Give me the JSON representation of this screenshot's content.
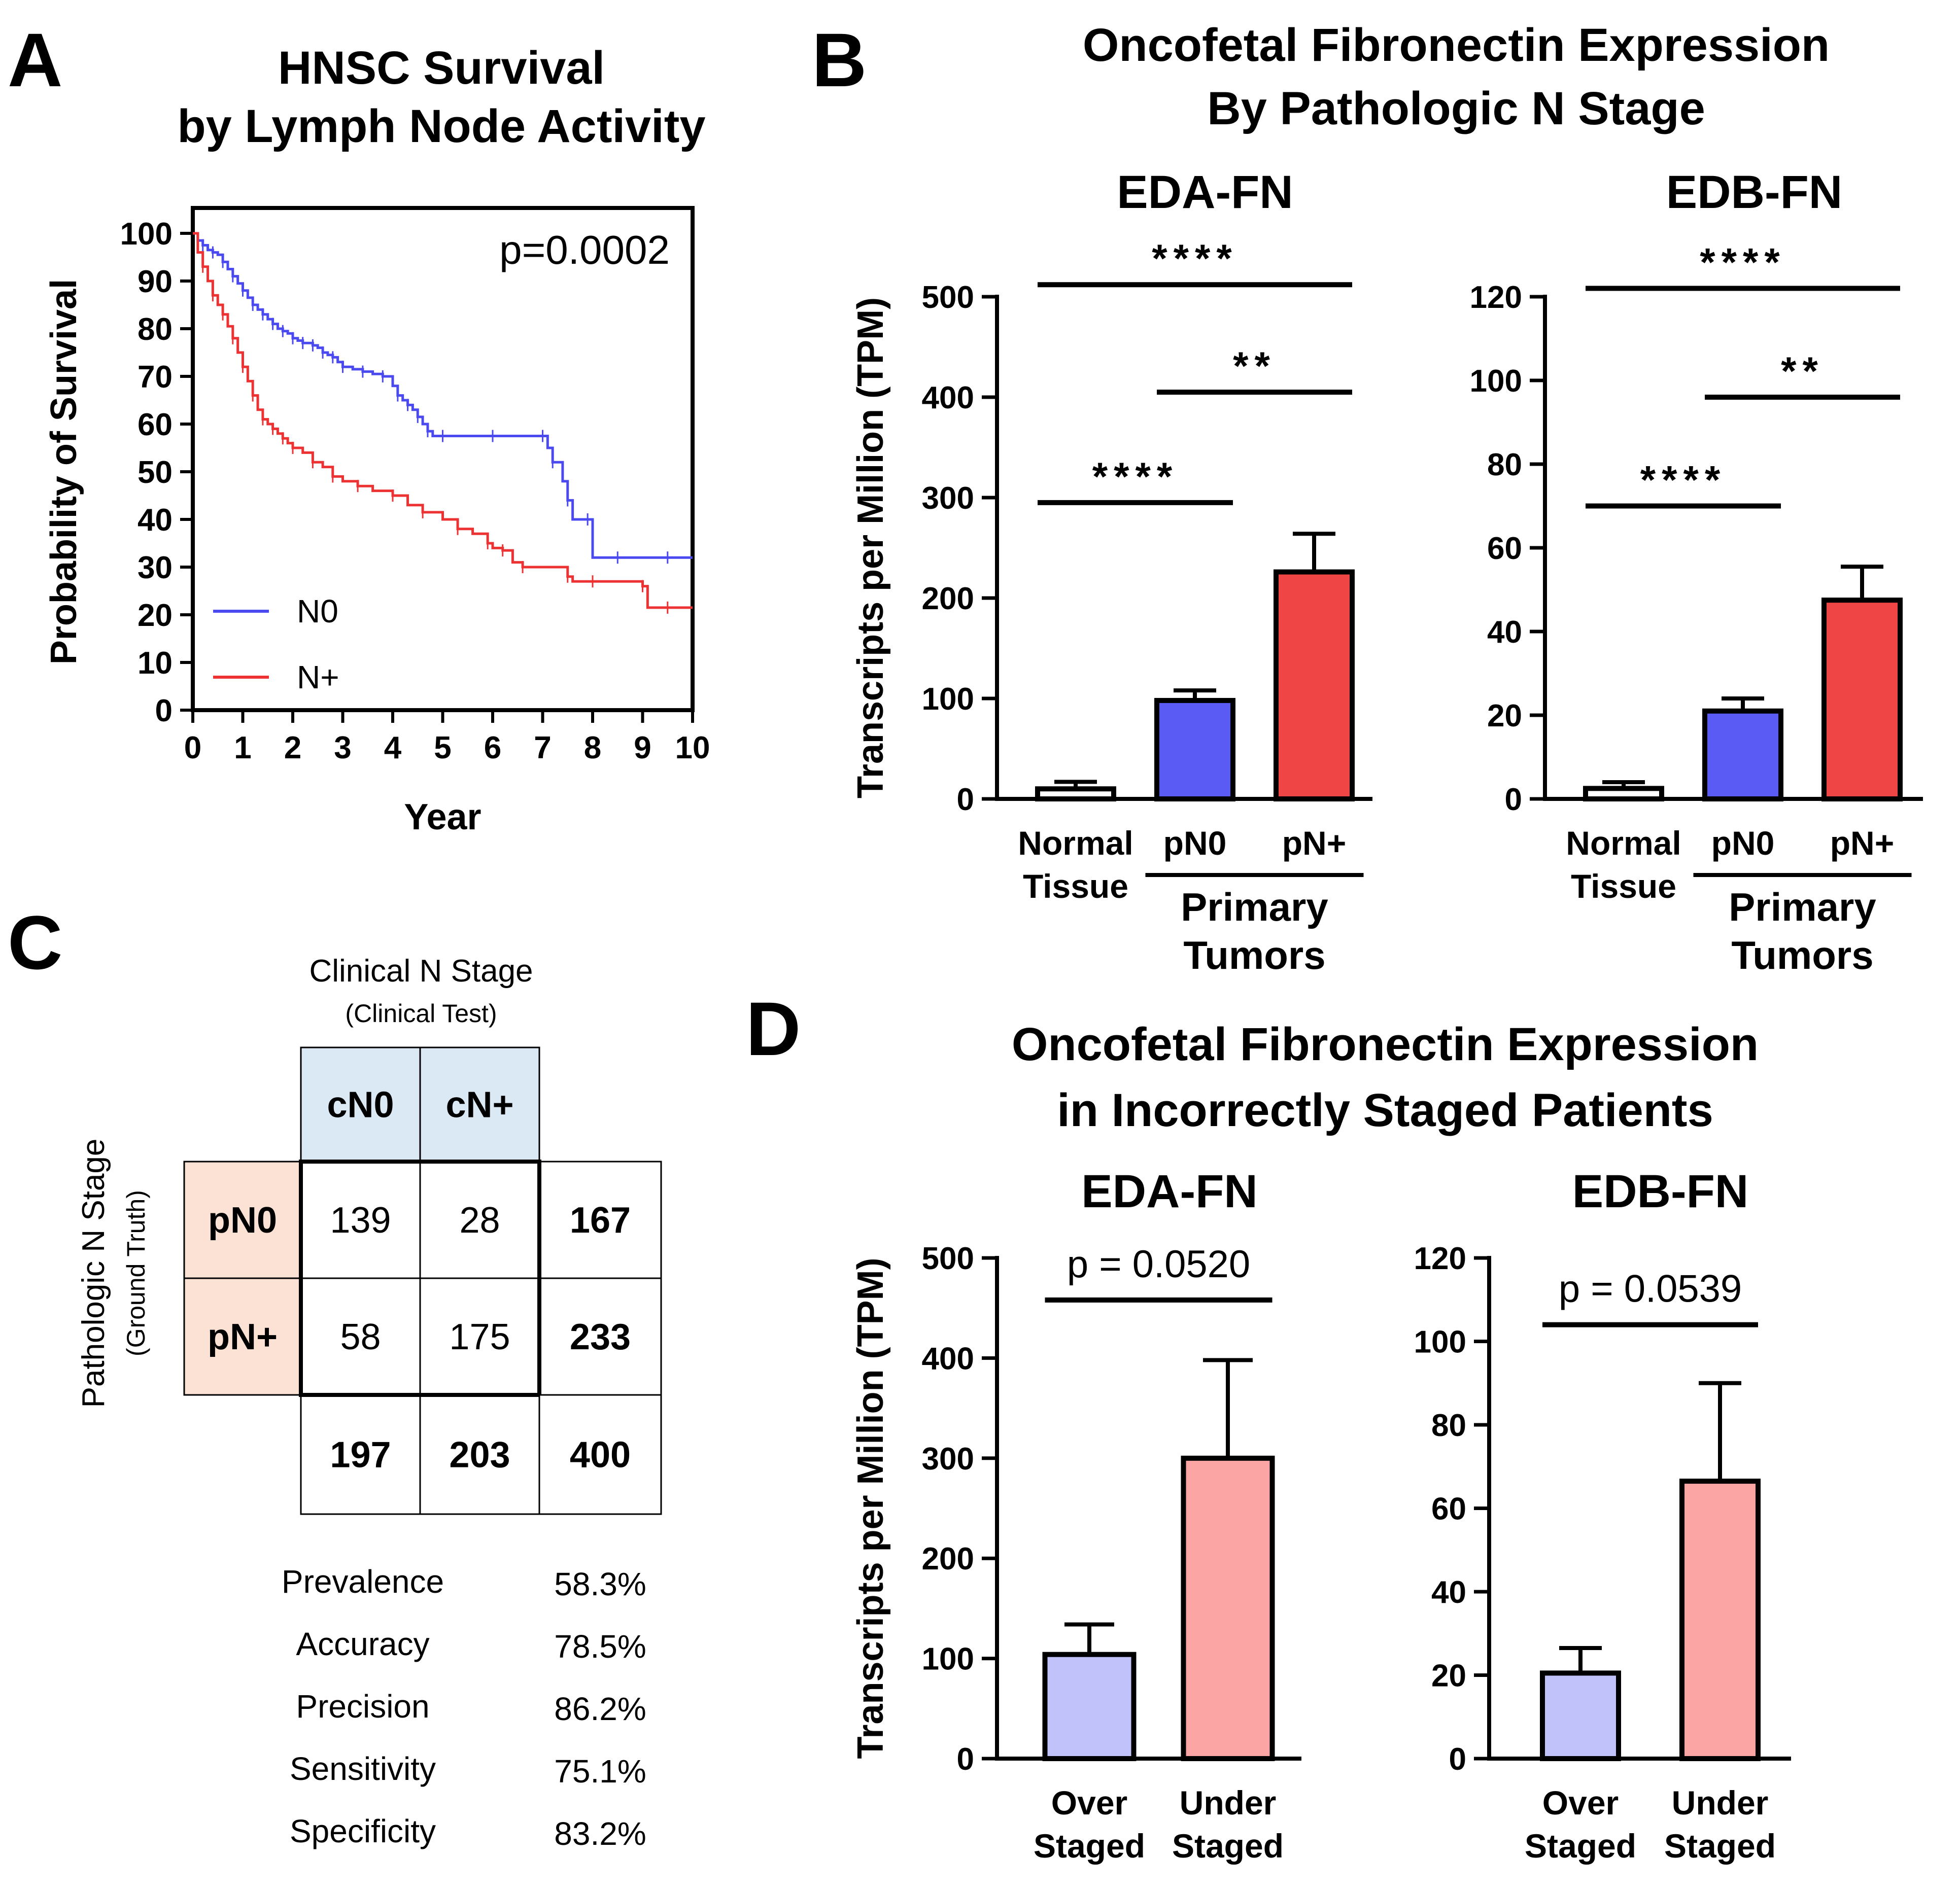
{
  "colors": {
    "n0_line": "#4a4af0",
    "npos_line": "#ec3232",
    "bar_pn0": "#5a5af5",
    "bar_pnpos": "#f04545",
    "bar_normal": "#ffffff",
    "bar_over": "#c2c2fa",
    "bar_under": "#fca5a5",
    "cn_header_bg": "#dbe9f5",
    "pn_header_bg": "#fbe2d5"
  },
  "panels": {
    "a": {
      "letter": "A",
      "title_line1": "HNSC Survival",
      "title_line2": "by Lymph Node Activity"
    },
    "b": {
      "letter": "B",
      "title_line1": "Oncofetal Fibronectin Expression",
      "title_line2": "By Pathologic N Stage"
    },
    "c": {
      "letter": "C"
    },
    "d": {
      "letter": "D",
      "title_line1": "Oncofetal Fibronectin Expression",
      "title_line2": "in Incorrectly Staged Patients"
    }
  },
  "chart_data": [
    {
      "id": "A",
      "type": "line",
      "title": "HNSC Survival by Lymph Node Activity",
      "xlabel": "Year",
      "ylabel": "Probability of Survival",
      "xlim": [
        0,
        10
      ],
      "ylim": [
        0,
        100
      ],
      "xticks": [
        0,
        1,
        2,
        3,
        4,
        5,
        6,
        7,
        8,
        9,
        10
      ],
      "yticks": [
        0,
        10,
        20,
        30,
        40,
        50,
        60,
        70,
        80,
        90,
        100
      ],
      "annotation": "p=0.0002",
      "legend": [
        "N0",
        "N+"
      ],
      "series": [
        {
          "name": "N0",
          "x": [
            0,
            0.1,
            0.2,
            0.3,
            0.4,
            0.5,
            0.6,
            0.7,
            0.8,
            0.9,
            1.0,
            1.1,
            1.2,
            1.3,
            1.4,
            1.5,
            1.6,
            1.7,
            1.8,
            1.9,
            2.0,
            2.1,
            2.2,
            2.3,
            2.4,
            2.5,
            2.6,
            2.7,
            2.8,
            2.9,
            3.0,
            3.2,
            3.4,
            3.6,
            3.8,
            4.0,
            4.1,
            4.2,
            4.3,
            4.4,
            4.5,
            4.6,
            4.7,
            4.8,
            5.0,
            5.5,
            6.0,
            6.5,
            7.0,
            7.1,
            7.2,
            7.4,
            7.5,
            7.6,
            7.9,
            8.0,
            8.5,
            9.0,
            9.5,
            10.0
          ],
          "y": [
            100,
            98.5,
            97.5,
            96.5,
            96,
            95.5,
            94,
            92.5,
            91,
            89.5,
            88,
            86.5,
            85,
            84,
            83,
            82,
            81,
            80,
            79.5,
            79,
            78,
            77.5,
            77,
            77,
            76.5,
            76,
            75,
            74.5,
            74,
            73,
            72,
            71.5,
            71,
            70.5,
            70,
            68,
            66,
            65,
            64,
            63,
            61.5,
            60,
            58.5,
            57.5,
            57.5,
            57.5,
            57.5,
            57.5,
            57.5,
            55,
            52,
            48,
            44,
            40,
            40,
            32,
            32,
            32,
            32,
            32
          ]
        },
        {
          "name": "N+",
          "x": [
            0,
            0.1,
            0.2,
            0.3,
            0.4,
            0.5,
            0.6,
            0.7,
            0.8,
            0.9,
            1.0,
            1.1,
            1.2,
            1.3,
            1.4,
            1.5,
            1.6,
            1.7,
            1.8,
            1.9,
            2.0,
            2.2,
            2.4,
            2.6,
            2.8,
            3.0,
            3.3,
            3.6,
            4.0,
            4.3,
            4.6,
            5.0,
            5.3,
            5.6,
            5.9,
            6.0,
            6.2,
            6.4,
            6.6,
            7.0,
            7.5,
            7.6,
            8.0,
            8.5,
            9.0,
            9.1,
            9.5,
            10.0
          ],
          "y": [
            100,
            96,
            93,
            90,
            87,
            85,
            83,
            80.5,
            78,
            75,
            72,
            69,
            66,
            63,
            61,
            60,
            59,
            58,
            57,
            56,
            55,
            54,
            52,
            51,
            49,
            48,
            47,
            46,
            45,
            43,
            41.5,
            40,
            38,
            37,
            35,
            34,
            33.5,
            31,
            30,
            30,
            28,
            27,
            27,
            27,
            26,
            21.5,
            21.5,
            21.5
          ]
        }
      ]
    },
    {
      "id": "B-EDA",
      "type": "bar",
      "title": "EDA-FN",
      "ylabel": "Transcripts per Million (TPM)",
      "ylim": [
        0,
        500
      ],
      "yticks": [
        0,
        100,
        200,
        300,
        400,
        500
      ],
      "categories": [
        "Normal Tissue",
        "pN0",
        "pN+"
      ],
      "category_lines": [
        [
          "Normal",
          "Tissue"
        ],
        [
          "pN0"
        ],
        [
          "pN+"
        ]
      ],
      "group_label_lines": [
        "Primary",
        "Tumors"
      ],
      "values": [
        10,
        98,
        226
      ],
      "errors": [
        7,
        10,
        38
      ],
      "significance": [
        {
          "from": 0,
          "to": 2,
          "label": "****",
          "y": 512
        },
        {
          "from": 1,
          "to": 2,
          "label": "**",
          "y": 405
        },
        {
          "from": 0,
          "to": 1,
          "label": "****",
          "y": 295
        }
      ]
    },
    {
      "id": "B-EDB",
      "type": "bar",
      "title": "EDB-FN",
      "ylabel": "",
      "ylim": [
        0,
        120
      ],
      "yticks": [
        0,
        20,
        40,
        60,
        80,
        100,
        120
      ],
      "categories": [
        "Normal Tissue",
        "pN0",
        "pN+"
      ],
      "category_lines": [
        [
          "Normal",
          "Tissue"
        ],
        [
          "pN0"
        ],
        [
          "pN+"
        ]
      ],
      "group_label_lines": [
        "Primary",
        "Tumors"
      ],
      "values": [
        2.5,
        21,
        47.5
      ],
      "errors": [
        1.5,
        3,
        8
      ],
      "significance": [
        {
          "from": 0,
          "to": 2,
          "label": "****",
          "y": 122
        },
        {
          "from": 1,
          "to": 2,
          "label": "**",
          "y": 96
        },
        {
          "from": 0,
          "to": 1,
          "label": "****",
          "y": 70
        }
      ]
    },
    {
      "id": "D-EDA",
      "type": "bar",
      "title": "EDA-FN",
      "ylabel": "Transcripts per Million (TPM)",
      "ylim": [
        0,
        500
      ],
      "yticks": [
        0,
        100,
        200,
        300,
        400,
        500
      ],
      "categories": [
        "Over Staged",
        "Under Staged"
      ],
      "category_lines": [
        [
          "Over",
          "Staged"
        ],
        [
          "Under",
          "Staged"
        ]
      ],
      "values": [
        104,
        300
      ],
      "errors": [
        30,
        98
      ],
      "significance": [
        {
          "from": 0,
          "to": 1,
          "label": "p = 0.0520",
          "y": 458
        }
      ]
    },
    {
      "id": "D-EDB",
      "type": "bar",
      "title": "EDB-FN",
      "ylabel": "",
      "ylim": [
        0,
        120
      ],
      "yticks": [
        0,
        20,
        40,
        60,
        80,
        100,
        120
      ],
      "categories": [
        "Over Staged",
        "Under Staged"
      ],
      "category_lines": [
        [
          "Over",
          "Staged"
        ],
        [
          "Under",
          "Staged"
        ]
      ],
      "values": [
        20.5,
        66.5
      ],
      "errors": [
        6,
        23.5
      ],
      "significance": [
        {
          "from": 0,
          "to": 1,
          "label": "p = 0.0539",
          "y": 104
        }
      ]
    },
    {
      "id": "C",
      "type": "table",
      "col_axis_label": "Clinical N Stage",
      "col_axis_sublabel": "(Clinical Test)",
      "row_axis_label": "Pathologic N Stage",
      "row_axis_sublabel": "(Ground Truth)",
      "col_headers": [
        "cN0",
        "cN+"
      ],
      "row_headers": [
        "pN0",
        "pN+"
      ],
      "cells": [
        [
          139,
          28
        ],
        [
          58,
          175
        ]
      ],
      "row_totals": [
        167,
        233
      ],
      "col_totals": [
        197,
        203
      ],
      "grand_total": 400,
      "metrics": [
        {
          "label": "Prevalence",
          "value": "58.3%"
        },
        {
          "label": "Accuracy",
          "value": "78.5%"
        },
        {
          "label": "Precision",
          "value": "86.2%"
        },
        {
          "label": "Sensitivity",
          "value": "75.1%"
        },
        {
          "label": "Specificity",
          "value": "83.2%"
        }
      ]
    }
  ]
}
